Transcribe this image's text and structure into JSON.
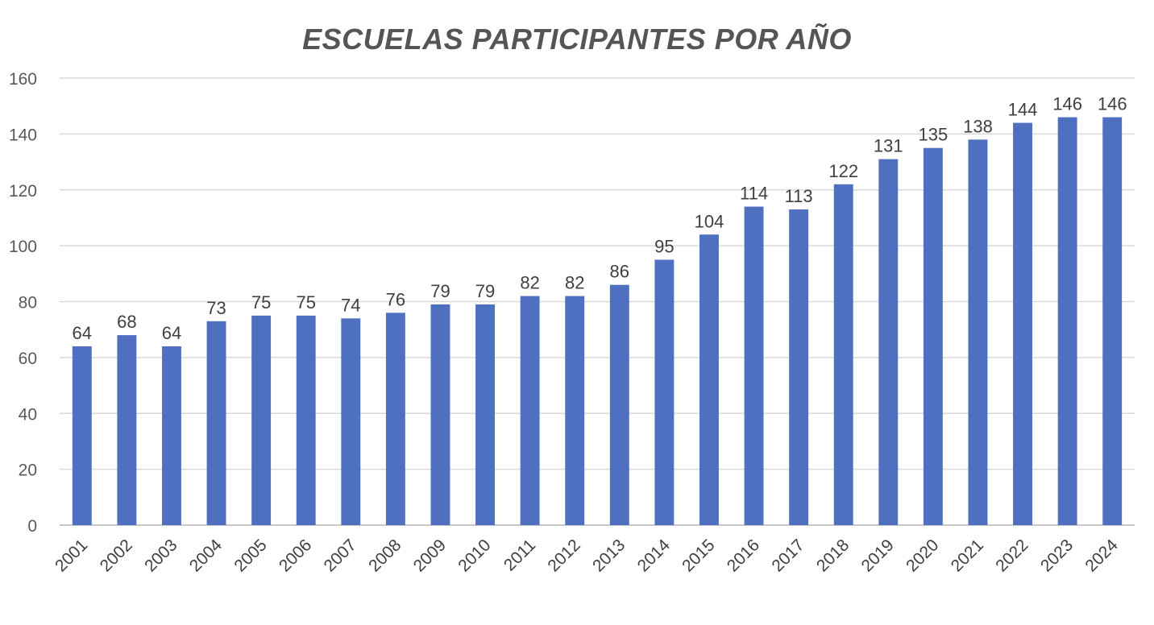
{
  "chart_data": {
    "type": "bar",
    "title": "ESCUELAS PARTICIPANTES POR AÑO",
    "xlabel": "",
    "ylabel": "",
    "categories": [
      "2001",
      "2002",
      "2003",
      "2004",
      "2005",
      "2006",
      "2007",
      "2008",
      "2009",
      "2010",
      "2011",
      "2012",
      "2013",
      "2014",
      "2015",
      "2016",
      "2017",
      "2018",
      "2019",
      "2020",
      "2021",
      "2022",
      "2023",
      "2024"
    ],
    "values": [
      64,
      68,
      64,
      73,
      75,
      75,
      74,
      76,
      79,
      79,
      82,
      82,
      86,
      95,
      104,
      114,
      113,
      122,
      131,
      135,
      138,
      144,
      146,
      146
    ],
    "ylim": [
      0,
      160
    ],
    "yticks": [
      0,
      20,
      40,
      60,
      80,
      100,
      120,
      140,
      160
    ],
    "grid": true,
    "legend": "none",
    "data_labels": true,
    "colors": {
      "bar": "#4F6FC0",
      "grid": "#D9D9D9",
      "title": "#555555",
      "text": "#404040"
    }
  }
}
